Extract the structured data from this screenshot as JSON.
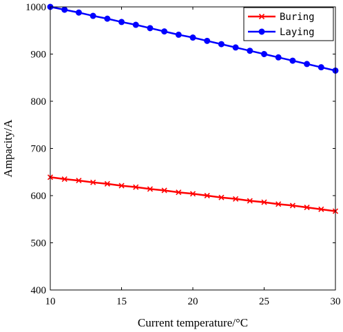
{
  "chart_data": {
    "type": "line",
    "title": "",
    "xlabel": "Current temperature/°C",
    "ylabel": "Ampacity/A",
    "xlim": [
      10,
      30
    ],
    "ylim": [
      400,
      1000
    ],
    "x_ticks": [
      10,
      15,
      20,
      25,
      30
    ],
    "y_ticks": [
      400,
      500,
      600,
      700,
      800,
      900,
      1000
    ],
    "grid": false,
    "legend_position": "top-right",
    "x": [
      10,
      11,
      12,
      13,
      14,
      15,
      16,
      17,
      18,
      19,
      20,
      21,
      22,
      23,
      24,
      25,
      26,
      27,
      28,
      29,
      30
    ],
    "series": [
      {
        "name": "Buring",
        "color": "#ff0000",
        "marker": "x",
        "values": [
          639,
          635,
          632,
          628,
          625,
          621,
          618,
          614,
          611,
          607,
          604,
          600,
          596,
          593,
          589,
          586,
          582,
          579,
          575,
          571,
          567
        ]
      },
      {
        "name": "Laying",
        "color": "#0000ff",
        "marker": "circle",
        "values": [
          1000,
          994,
          988,
          981,
          975,
          968,
          962,
          955,
          948,
          941,
          935,
          928,
          921,
          914,
          907,
          900,
          893,
          886,
          879,
          872,
          865
        ]
      }
    ]
  }
}
